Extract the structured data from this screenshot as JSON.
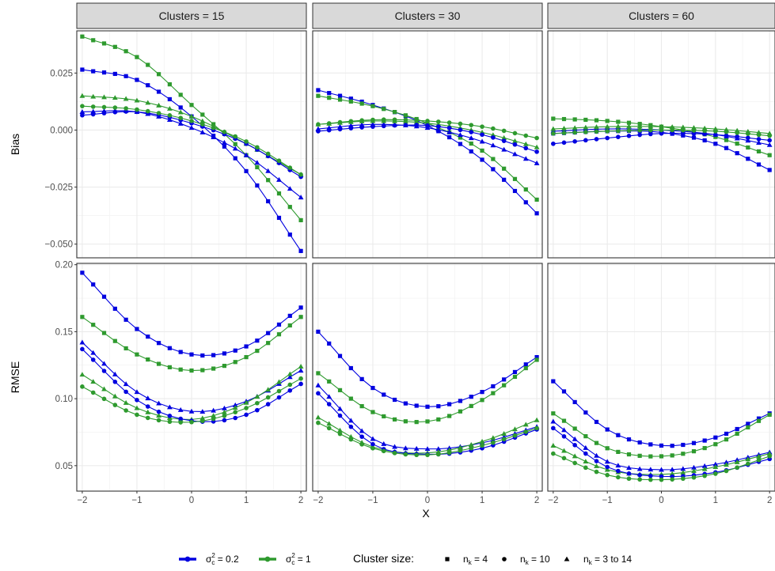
{
  "chart_data": {
    "type": "line",
    "facet_columns": [
      "Clusters = 15",
      "Clusters = 30",
      "Clusters = 60"
    ],
    "facet_rows": [
      "Bias",
      "RMSE"
    ],
    "xlabel": "X",
    "x_ticks": [
      -2,
      -1,
      0,
      1,
      2
    ],
    "xlim": [
      -2.1,
      2.1
    ],
    "bias_ylim": [
      -0.056,
      0.0435
    ],
    "bias_ticks": [
      -0.05,
      -0.025,
      0.0,
      0.025
    ],
    "bias_tick_labels": [
      "−0.050",
      "−0.025",
      "0.000",
      "0.025"
    ],
    "rmse_ylim": [
      0.031,
      0.201
    ],
    "rmse_ticks": [
      0.05,
      0.1,
      0.15,
      0.2
    ],
    "rmse_tick_labels": [
      "0.05",
      "0.10",
      "0.15",
      "0.20"
    ],
    "x_tick_labels": [
      "−2",
      "−1",
      "0",
      "1",
      "2"
    ],
    "colors": {
      "sigma_0_2": "#0000e0",
      "sigma_1": "#2e9a2e",
      "strip_fill": "#d9d9d9",
      "grid": "#ebebeb"
    },
    "n_points": 21,
    "series": [
      {
        "facet": 0,
        "row": "bias",
        "color": "sigma_0_2",
        "shape": "square",
        "anchors": [
          [
            -2,
            0.0265
          ],
          [
            -1,
            0.022
          ],
          [
            0,
            0.006
          ],
          [
            1,
            -0.018
          ],
          [
            2,
            -0.053
          ]
        ]
      },
      {
        "facet": 0,
        "row": "bias",
        "color": "sigma_1",
        "shape": "square",
        "anchors": [
          [
            -2,
            0.041
          ],
          [
            -1,
            0.032
          ],
          [
            0,
            0.011
          ],
          [
            1,
            -0.011
          ],
          [
            2,
            -0.0395
          ]
        ]
      },
      {
        "facet": 0,
        "row": "bias",
        "color": "sigma_0_2",
        "shape": "triangle",
        "anchors": [
          [
            -2,
            0.008
          ],
          [
            -1,
            0.008
          ],
          [
            0,
            0.001
          ],
          [
            1,
            -0.011
          ],
          [
            2,
            -0.0295
          ]
        ]
      },
      {
        "facet": 0,
        "row": "bias",
        "color": "sigma_1",
        "shape": "triangle",
        "anchors": [
          [
            -2,
            0.015
          ],
          [
            -1,
            0.013
          ],
          [
            0,
            0.006
          ],
          [
            1,
            -0.006
          ],
          [
            2,
            -0.0195
          ]
        ]
      },
      {
        "facet": 0,
        "row": "bias",
        "color": "sigma_0_2",
        "shape": "circle",
        "anchors": [
          [
            -2,
            0.0065
          ],
          [
            -1,
            0.008
          ],
          [
            0,
            0.003
          ],
          [
            1,
            -0.006
          ],
          [
            2,
            -0.0205
          ]
        ]
      },
      {
        "facet": 0,
        "row": "bias",
        "color": "sigma_1",
        "shape": "circle",
        "anchors": [
          [
            -2,
            0.0105
          ],
          [
            -1,
            0.009
          ],
          [
            0,
            0.004
          ],
          [
            1,
            -0.005
          ],
          [
            2,
            -0.0195
          ]
        ]
      },
      {
        "facet": 1,
        "row": "bias",
        "color": "sigma_0_2",
        "shape": "square",
        "anchors": [
          [
            -2,
            0.0175
          ],
          [
            -1,
            0.011
          ],
          [
            0,
            0.002
          ],
          [
            1,
            -0.013
          ],
          [
            2,
            -0.0365
          ]
        ]
      },
      {
        "facet": 1,
        "row": "bias",
        "color": "sigma_1",
        "shape": "square",
        "anchors": [
          [
            -2,
            0.015
          ],
          [
            -1,
            0.0105
          ],
          [
            0,
            0.003
          ],
          [
            1,
            -0.009
          ],
          [
            2,
            -0.0305
          ]
        ]
      },
      {
        "facet": 1,
        "row": "bias",
        "color": "sigma_0_2",
        "shape": "triangle",
        "anchors": [
          [
            -2,
            0.0005
          ],
          [
            -1,
            0.0025
          ],
          [
            0,
            0.001
          ],
          [
            1,
            -0.005
          ],
          [
            2,
            -0.0145
          ]
        ]
      },
      {
        "facet": 1,
        "row": "bias",
        "color": "sigma_1",
        "shape": "triangle",
        "anchors": [
          [
            -2,
            0.0025
          ],
          [
            -1,
            0.004
          ],
          [
            0,
            0.003
          ],
          [
            1,
            -0.001
          ],
          [
            2,
            -0.0075
          ]
        ]
      },
      {
        "facet": 1,
        "row": "bias",
        "color": "sigma_0_2",
        "shape": "circle",
        "anchors": [
          [
            -2,
            -0.0005
          ],
          [
            -1,
            0.0015
          ],
          [
            0,
            0.002
          ],
          [
            1,
            -0.002
          ],
          [
            2,
            -0.0095
          ]
        ]
      },
      {
        "facet": 1,
        "row": "bias",
        "color": "sigma_1",
        "shape": "circle",
        "anchors": [
          [
            -2,
            0.0025
          ],
          [
            -1,
            0.0045
          ],
          [
            0,
            0.004
          ],
          [
            1,
            0.0015
          ],
          [
            2,
            -0.0035
          ]
        ]
      },
      {
        "facet": 2,
        "row": "bias",
        "color": "sigma_0_2",
        "shape": "square",
        "anchors": [
          [
            -2,
            -0.0015
          ],
          [
            -1,
            -0.0005
          ],
          [
            0,
            -0.001
          ],
          [
            1,
            -0.006
          ],
          [
            2,
            -0.0175
          ]
        ]
      },
      {
        "facet": 2,
        "row": "bias",
        "color": "sigma_1",
        "shape": "square",
        "anchors": [
          [
            -2,
            0.005
          ],
          [
            -1,
            0.004
          ],
          [
            0,
            0.0015
          ],
          [
            1,
            -0.003
          ],
          [
            2,
            -0.011
          ]
        ]
      },
      {
        "facet": 2,
        "row": "bias",
        "color": "sigma_0_2",
        "shape": "triangle",
        "anchors": [
          [
            -2,
            -0.0005
          ],
          [
            -1,
            0.0005
          ],
          [
            0,
            0.0
          ],
          [
            1,
            -0.002
          ],
          [
            2,
            -0.0065
          ]
        ]
      },
      {
        "facet": 2,
        "row": "bias",
        "color": "sigma_1",
        "shape": "triangle",
        "anchors": [
          [
            -2,
            0.0005
          ],
          [
            -1,
            0.0015
          ],
          [
            0,
            0.0015
          ],
          [
            1,
            0.0005
          ],
          [
            2,
            -0.0015
          ]
        ]
      },
      {
        "facet": 2,
        "row": "bias",
        "color": "sigma_0_2",
        "shape": "circle",
        "anchors": [
          [
            -2,
            -0.006
          ],
          [
            -1,
            -0.0035
          ],
          [
            0,
            -0.0015
          ],
          [
            1,
            -0.002
          ],
          [
            2,
            -0.0045
          ]
        ]
      },
      {
        "facet": 2,
        "row": "bias",
        "color": "sigma_1",
        "shape": "circle",
        "anchors": [
          [
            -2,
            -0.0015
          ],
          [
            -1,
            -0.0005
          ],
          [
            0,
            0.0
          ],
          [
            1,
            -0.0005
          ],
          [
            2,
            -0.0025
          ]
        ]
      },
      {
        "facet": 0,
        "row": "rmse",
        "color": "sigma_0_2",
        "shape": "square",
        "anchors": [
          [
            -2,
            0.194
          ],
          [
            -1,
            0.152
          ],
          [
            0,
            0.133
          ],
          [
            1,
            0.139
          ],
          [
            2,
            0.168
          ]
        ]
      },
      {
        "facet": 0,
        "row": "rmse",
        "color": "sigma_1",
        "shape": "square",
        "anchors": [
          [
            -2,
            0.161
          ],
          [
            -1,
            0.133
          ],
          [
            0,
            0.121
          ],
          [
            1,
            0.131
          ],
          [
            2,
            0.161
          ]
        ]
      },
      {
        "facet": 0,
        "row": "rmse",
        "color": "sigma_0_2",
        "shape": "triangle",
        "anchors": [
          [
            -2,
            0.142
          ],
          [
            -1,
            0.105
          ],
          [
            0,
            0.0905
          ],
          [
            1,
            0.098
          ],
          [
            2,
            0.121
          ]
        ]
      },
      {
        "facet": 0,
        "row": "rmse",
        "color": "sigma_1",
        "shape": "triangle",
        "anchors": [
          [
            -2,
            0.118
          ],
          [
            -1,
            0.093
          ],
          [
            0,
            0.0845
          ],
          [
            1,
            0.097
          ],
          [
            2,
            0.124
          ]
        ]
      },
      {
        "facet": 0,
        "row": "rmse",
        "color": "sigma_0_2",
        "shape": "circle",
        "anchors": [
          [
            -2,
            0.137
          ],
          [
            -1,
            0.099
          ],
          [
            0,
            0.0835
          ],
          [
            1,
            0.088
          ],
          [
            2,
            0.111
          ]
        ]
      },
      {
        "facet": 0,
        "row": "rmse",
        "color": "sigma_1",
        "shape": "circle",
        "anchors": [
          [
            -2,
            0.109
          ],
          [
            -1,
            0.088
          ],
          [
            0,
            0.0825
          ],
          [
            1,
            0.093
          ],
          [
            2,
            0.115
          ]
        ]
      },
      {
        "facet": 1,
        "row": "rmse",
        "color": "sigma_0_2",
        "shape": "square",
        "anchors": [
          [
            -2,
            0.15
          ],
          [
            -1,
            0.108
          ],
          [
            0,
            0.094
          ],
          [
            1,
            0.105
          ],
          [
            2,
            0.131
          ]
        ]
      },
      {
        "facet": 1,
        "row": "rmse",
        "color": "sigma_1",
        "shape": "square",
        "anchors": [
          [
            -2,
            0.119
          ],
          [
            -1,
            0.09
          ],
          [
            0,
            0.083
          ],
          [
            1,
            0.099
          ],
          [
            2,
            0.129
          ]
        ]
      },
      {
        "facet": 1,
        "row": "rmse",
        "color": "sigma_0_2",
        "shape": "triangle",
        "anchors": [
          [
            -2,
            0.11
          ],
          [
            -1,
            0.07
          ],
          [
            0,
            0.0625
          ],
          [
            1,
            0.067
          ],
          [
            2,
            0.079
          ]
        ]
      },
      {
        "facet": 1,
        "row": "rmse",
        "color": "sigma_1",
        "shape": "triangle",
        "anchors": [
          [
            -2,
            0.086
          ],
          [
            -1,
            0.064
          ],
          [
            0,
            0.0595
          ],
          [
            1,
            0.068
          ],
          [
            2,
            0.084
          ]
        ]
      },
      {
        "facet": 1,
        "row": "rmse",
        "color": "sigma_0_2",
        "shape": "circle",
        "anchors": [
          [
            -2,
            0.104
          ],
          [
            -1,
            0.066
          ],
          [
            0,
            0.0585
          ],
          [
            1,
            0.063
          ],
          [
            2,
            0.077
          ]
        ]
      },
      {
        "facet": 1,
        "row": "rmse",
        "color": "sigma_1",
        "shape": "circle",
        "anchors": [
          [
            -2,
            0.082
          ],
          [
            -1,
            0.063
          ],
          [
            0,
            0.058
          ],
          [
            1,
            0.065
          ],
          [
            2,
            0.078
          ]
        ]
      },
      {
        "facet": 2,
        "row": "rmse",
        "color": "sigma_0_2",
        "shape": "square",
        "anchors": [
          [
            -2,
            0.113
          ],
          [
            -1,
            0.077
          ],
          [
            0,
            0.065
          ],
          [
            1,
            0.071
          ],
          [
            2,
            0.089
          ]
        ]
      },
      {
        "facet": 2,
        "row": "rmse",
        "color": "sigma_1",
        "shape": "square",
        "anchors": [
          [
            -2,
            0.089
          ],
          [
            -1,
            0.063
          ],
          [
            0,
            0.057
          ],
          [
            1,
            0.066
          ],
          [
            2,
            0.088
          ]
        ]
      },
      {
        "facet": 2,
        "row": "rmse",
        "color": "sigma_0_2",
        "shape": "triangle",
        "anchors": [
          [
            -2,
            0.083
          ],
          [
            -1,
            0.053
          ],
          [
            0,
            0.047
          ],
          [
            1,
            0.051
          ],
          [
            2,
            0.06
          ]
        ]
      },
      {
        "facet": 2,
        "row": "rmse",
        "color": "sigma_1",
        "shape": "triangle",
        "anchors": [
          [
            -2,
            0.065
          ],
          [
            -1,
            0.047
          ],
          [
            0,
            0.0435
          ],
          [
            1,
            0.049
          ],
          [
            2,
            0.059
          ]
        ]
      },
      {
        "facet": 2,
        "row": "rmse",
        "color": "sigma_0_2",
        "shape": "circle",
        "anchors": [
          [
            -2,
            0.078
          ],
          [
            -1,
            0.049
          ],
          [
            0,
            0.042
          ],
          [
            1,
            0.045
          ],
          [
            2,
            0.055
          ]
        ]
      },
      {
        "facet": 2,
        "row": "rmse",
        "color": "sigma_1",
        "shape": "circle",
        "anchors": [
          [
            -2,
            0.059
          ],
          [
            -1,
            0.043
          ],
          [
            0,
            0.0395
          ],
          [
            1,
            0.044
          ],
          [
            2,
            0.057
          ]
        ]
      }
    ],
    "legend": {
      "position": "bottom",
      "sigma_low": {
        "sym": "σ",
        "sub": "c",
        "sup": "2",
        "value": " = 0.2"
      },
      "sigma_high": {
        "sym": "σ",
        "sub": "c",
        "sup": "2",
        "value": " = 1"
      },
      "size_title": "Cluster size:",
      "size_items": [
        {
          "shape": "square",
          "sym": "n",
          "sub": "k",
          "value": " = 4"
        },
        {
          "shape": "circle",
          "sym": "n",
          "sub": "k",
          "value": " = 10"
        },
        {
          "shape": "triangle",
          "sym": "n",
          "sub": "k",
          "value": " = 3 to 14"
        }
      ]
    }
  }
}
